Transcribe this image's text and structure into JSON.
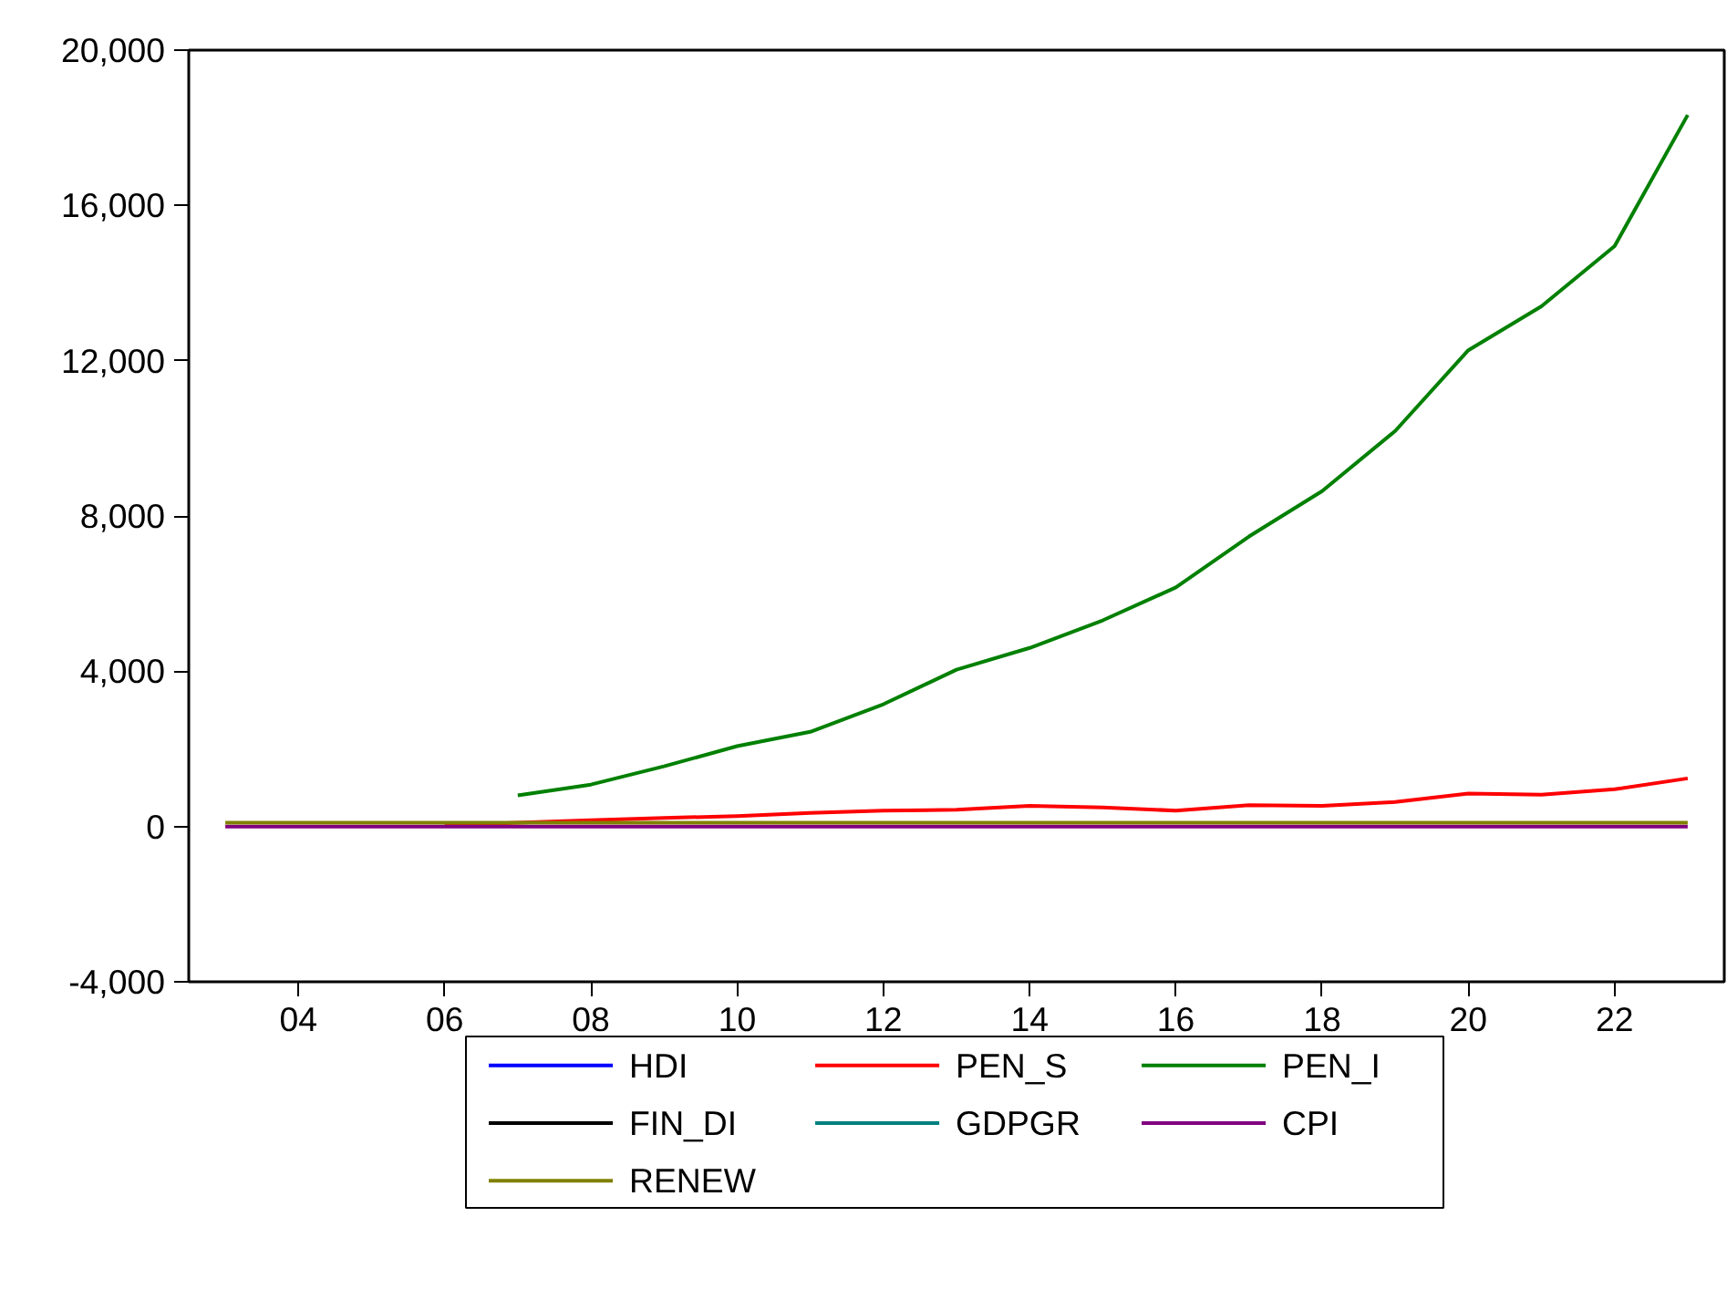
{
  "chart_data": {
    "type": "line",
    "x": [
      2003,
      2004,
      2005,
      2006,
      2007,
      2008,
      2009,
      2010,
      2011,
      2012,
      2013,
      2014,
      2015,
      2016,
      2017,
      2018,
      2019,
      2020,
      2021,
      2022,
      2023
    ],
    "xlim": [
      2002.5,
      2023.5
    ],
    "xticks": [
      {
        "value": 2004,
        "label": "04"
      },
      {
        "value": 2006,
        "label": "06"
      },
      {
        "value": 2008,
        "label": "08"
      },
      {
        "value": 2010,
        "label": "10"
      },
      {
        "value": 2012,
        "label": "12"
      },
      {
        "value": 2014,
        "label": "14"
      },
      {
        "value": 2016,
        "label": "16"
      },
      {
        "value": 2018,
        "label": "18"
      },
      {
        "value": 2020,
        "label": "20"
      },
      {
        "value": 2022,
        "label": "22"
      }
    ],
    "ylim": [
      -4000,
      20000
    ],
    "yticks": [
      {
        "value": -4000,
        "label": "-4,000"
      },
      {
        "value": 0,
        "label": "0"
      },
      {
        "value": 4000,
        "label": "4,000"
      },
      {
        "value": 8000,
        "label": "8,000"
      },
      {
        "value": 12000,
        "label": "12,000"
      },
      {
        "value": 16000,
        "label": "16,000"
      },
      {
        "value": 20000,
        "label": "20,000"
      }
    ],
    "grid": false,
    "legend": "bottom",
    "marker": "none",
    "line_style": "solid",
    "series": [
      {
        "name": "HDI",
        "color": "#0000ff",
        "values": [
          null,
          null,
          null,
          null,
          null,
          null,
          null,
          null,
          null,
          null,
          null,
          null,
          null,
          null,
          null,
          null,
          null,
          null,
          null,
          null,
          null
        ]
      },
      {
        "name": "PEN_S",
        "color": "#ff0000",
        "values": [
          null,
          null,
          null,
          30,
          100,
          160,
          220,
          270,
          350,
          410,
          430,
          530,
          490,
          410,
          550,
          530,
          630,
          850,
          820,
          960,
          1240
        ]
      },
      {
        "name": "PEN_I",
        "color": "#008000",
        "values": [
          null,
          null,
          null,
          null,
          800,
          1080,
          1550,
          2070,
          2440,
          3150,
          4040,
          4600,
          5310,
          6160,
          7470,
          8640,
          10190,
          12270,
          13400,
          14950,
          18330
        ]
      },
      {
        "name": "FIN_DI",
        "color": "#000000",
        "values": [
          null,
          null,
          null,
          null,
          null,
          null,
          null,
          null,
          null,
          null,
          null,
          null,
          null,
          null,
          null,
          null,
          null,
          null,
          null,
          null,
          null
        ]
      },
      {
        "name": "GDPGR",
        "color": "#008080",
        "values": [
          null,
          null,
          null,
          null,
          null,
          null,
          null,
          null,
          null,
          null,
          null,
          null,
          null,
          null,
          null,
          null,
          null,
          null,
          null,
          null,
          null
        ]
      },
      {
        "name": "CPI",
        "color": "#800080",
        "values": [
          0,
          0,
          0,
          0,
          0,
          0,
          0,
          0,
          0,
          0,
          0,
          0,
          0,
          0,
          0,
          0,
          0,
          0,
          0,
          0,
          0
        ]
      },
      {
        "name": "RENEW",
        "color": "#808000",
        "values": [
          100,
          100,
          100,
          100,
          100,
          100,
          100,
          100,
          100,
          100,
          100,
          100,
          100,
          100,
          100,
          100,
          100,
          100,
          100,
          100,
          100
        ]
      }
    ]
  }
}
